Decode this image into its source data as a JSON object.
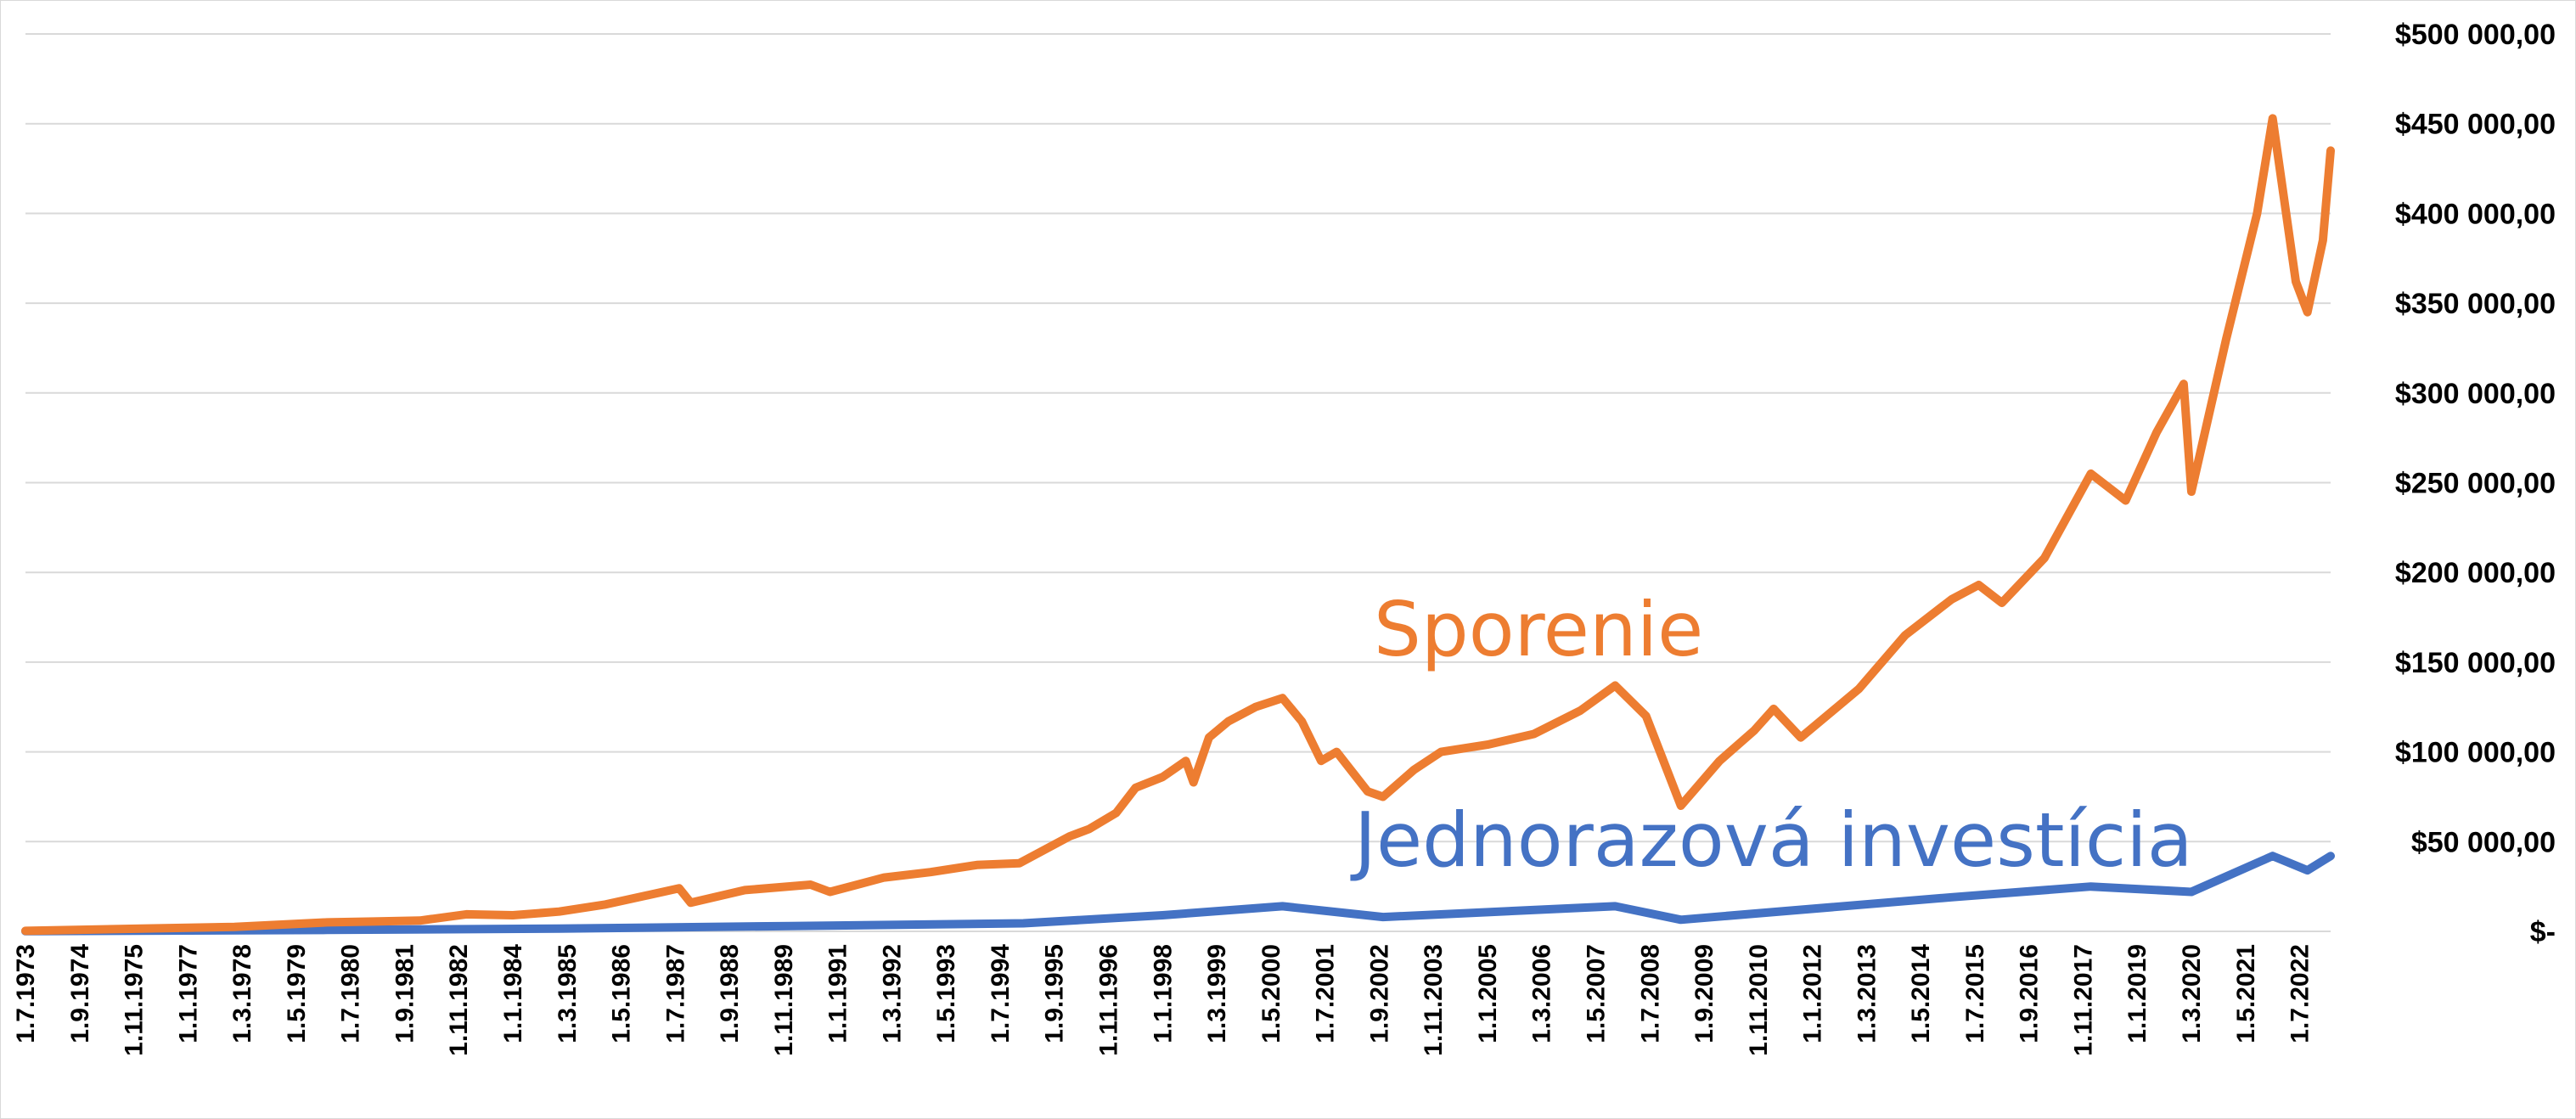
{
  "chart_data": {
    "type": "line",
    "title": "",
    "xlabel": "",
    "ylabel": "",
    "ylim": [
      0,
      500000
    ],
    "grid": true,
    "legend": "none",
    "y_ticks": [
      {
        "value": 0,
        "label": "$-"
      },
      {
        "value": 50000,
        "label": "$50 000,00"
      },
      {
        "value": 100000,
        "label": "$100 000,00"
      },
      {
        "value": 150000,
        "label": "$150 000,00"
      },
      {
        "value": 200000,
        "label": "$200 000,00"
      },
      {
        "value": 250000,
        "label": "$250 000,00"
      },
      {
        "value": 300000,
        "label": "$300 000,00"
      },
      {
        "value": 350000,
        "label": "$350 000,00"
      },
      {
        "value": 400000,
        "label": "$400 000,00"
      },
      {
        "value": 450000,
        "label": "$450 000,00"
      },
      {
        "value": 500000,
        "label": "$500 000,00"
      }
    ],
    "x_ticks": [
      "1.7.1973",
      "1.9.1974",
      "1.11.1975",
      "1.1.1977",
      "1.3.1978",
      "1.5.1979",
      "1.7.1980",
      "1.9.1981",
      "1.11.1982",
      "1.1.1984",
      "1.3.1985",
      "1.5.1986",
      "1.7.1987",
      "1.9.1988",
      "1.11.1989",
      "1.1.1991",
      "1.3.1992",
      "1.5.1993",
      "1.7.1994",
      "1.9.1995",
      "1.11.1996",
      "1.1.1998",
      "1.3.1999",
      "1.5.2000",
      "1.7.2001",
      "1.9.2002",
      "1.11.2003",
      "1.1.2005",
      "1.3.2006",
      "1.5.2007",
      "1.7.2008",
      "1.9.2009",
      "1.11.2010",
      "1.1.2012",
      "1.3.2013",
      "1.5.2014",
      "1.7.2015",
      "1.9.2016",
      "1.11.2017",
      "1.1.2019",
      "1.3.2020",
      "1.5.2021",
      "1.7.2022"
    ],
    "x_range": [
      "1.7.1973",
      "1.3.2023"
    ],
    "series": [
      {
        "name": "Sporenie",
        "color": "#ED7D31",
        "points": [
          [
            "1.7.1973",
            300
          ],
          [
            "1.1.1976",
            1500
          ],
          [
            "1.1.1978",
            2500
          ],
          [
            "1.1.1980",
            5000
          ],
          [
            "1.1.1981",
            5500
          ],
          [
            "1.1.1982",
            6000
          ],
          [
            "1.1.1983",
            9500
          ],
          [
            "1.1.1984",
            9000
          ],
          [
            "1.1.1985",
            11000
          ],
          [
            "1.1.1986",
            15000
          ],
          [
            "1.8.1987",
            24000
          ],
          [
            "1.11.1987",
            16000
          ],
          [
            "1.1.1989",
            23000
          ],
          [
            "1.6.1990",
            26000
          ],
          [
            "1.11.1990",
            22000
          ],
          [
            "1.1.1992",
            30000
          ],
          [
            "1.1.1993",
            33000
          ],
          [
            "1.1.1994",
            37000
          ],
          [
            "1.12.1994",
            38000
          ],
          [
            "1.1.1996",
            53000
          ],
          [
            "1.6.1996",
            57000
          ],
          [
            "1.1.1997",
            66000
          ],
          [
            "1.6.1997",
            80000
          ],
          [
            "1.1.1998",
            86000
          ],
          [
            "1.7.1998",
            95000
          ],
          [
            "1.9.1998",
            83000
          ],
          [
            "1.1.1999",
            108000
          ],
          [
            "1.6.1999",
            117000
          ],
          [
            "1.1.2000",
            125000
          ],
          [
            "1.8.2000",
            130000
          ],
          [
            "1.1.2001",
            117000
          ],
          [
            "1.6.2001",
            95000
          ],
          [
            "1.10.2001",
            100000
          ],
          [
            "1.6.2002",
            78000
          ],
          [
            "1.10.2002",
            75000
          ],
          [
            "1.6.2003",
            90000
          ],
          [
            "1.1.2004",
            100000
          ],
          [
            "1.1.2005",
            104000
          ],
          [
            "1.1.2006",
            110000
          ],
          [
            "1.1.2007",
            123000
          ],
          [
            "1.10.2007",
            137000
          ],
          [
            "1.6.2008",
            120000
          ],
          [
            "1.3.2009",
            70000
          ],
          [
            "1.1.2010",
            95000
          ],
          [
            "1.10.2010",
            112000
          ],
          [
            "1.3.2011",
            124000
          ],
          [
            "1.10.2011",
            108000
          ],
          [
            "1.1.2013",
            135000
          ],
          [
            "1.1.2014",
            165000
          ],
          [
            "1.1.2015",
            185000
          ],
          [
            "1.8.2015",
            193000
          ],
          [
            "1.2.2016",
            183000
          ],
          [
            "1.1.2017",
            208000
          ],
          [
            "1.1.2018",
            255000
          ],
          [
            "1.10.2018",
            240000
          ],
          [
            "1.6.2019",
            278000
          ],
          [
            "1.1.2020",
            305000
          ],
          [
            "1.3.2020",
            245000
          ],
          [
            "1.12.2020",
            330000
          ],
          [
            "1.8.2021",
            400000
          ],
          [
            "1.12.2021",
            453000
          ],
          [
            "1.6.2022",
            362000
          ],
          [
            "1.9.2022",
            345000
          ],
          [
            "1.1.2023",
            385000
          ],
          [
            "1.3.2023",
            435000
          ]
        ]
      },
      {
        "name": "Jednorazová investícia",
        "color": "#4472C4",
        "points": [
          [
            "1.7.1973",
            100
          ],
          [
            "1.1.1980",
            800
          ],
          [
            "1.1.1985",
            1500
          ],
          [
            "1.1.1990",
            3000
          ],
          [
            "1.1.1995",
            4500
          ],
          [
            "1.1.1998",
            9000
          ],
          [
            "1.8.2000",
            14000
          ],
          [
            "1.10.2002",
            8000
          ],
          [
            "1.10.2007",
            14000
          ],
          [
            "1.3.2009",
            6500
          ],
          [
            "1.1.2015",
            19000
          ],
          [
            "1.1.2018",
            25000
          ],
          [
            "1.3.2020",
            22000
          ],
          [
            "1.12.2021",
            42000
          ],
          [
            "1.9.2022",
            34000
          ],
          [
            "1.3.2023",
            42000
          ]
        ]
      }
    ]
  }
}
